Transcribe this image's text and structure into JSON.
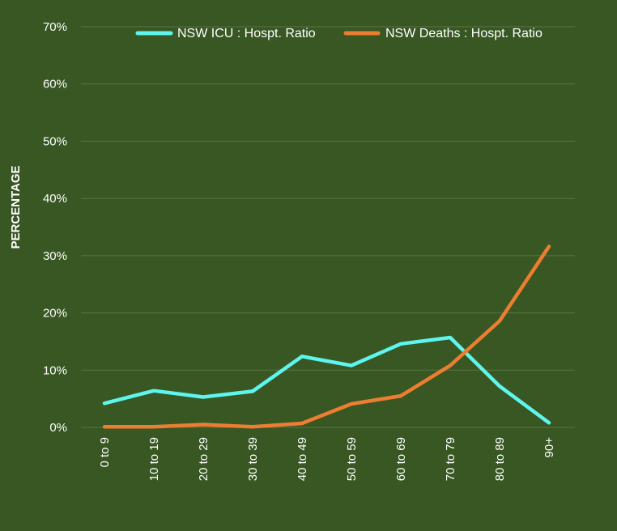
{
  "chart_data": {
    "type": "line",
    "title": "",
    "xlabel": "",
    "ylabel": "PERCENTAGE",
    "ylim": [
      0,
      70
    ],
    "yticks": [
      "0%",
      "10%",
      "20%",
      "30%",
      "40%",
      "50%",
      "60%",
      "70%"
    ],
    "ytick_values": [
      0,
      10,
      20,
      30,
      40,
      50,
      60,
      70
    ],
    "categories": [
      "0 to 9",
      "10 to 19",
      "20 to 29",
      "30 to 39",
      "40 to 49",
      "50 to 59",
      "60 to 69",
      "70 to 79",
      "80 to 89",
      "90+"
    ],
    "grid": true,
    "legend_position": "top",
    "series": [
      {
        "name": "NSW ICU : Hospt. Ratio",
        "color": "#5ef5ef",
        "values": [
          4.2,
          6.4,
          5.3,
          6.3,
          12.4,
          10.8,
          14.6,
          15.7,
          7.2,
          0.8
        ]
      },
      {
        "name": "NSW Deaths : Hospt. Ratio",
        "color": "#ed7d31",
        "values": [
          0.1,
          0.1,
          0.5,
          0.1,
          0.7,
          4.1,
          5.5,
          10.8,
          18.6,
          31.6
        ]
      }
    ]
  },
  "colors": {
    "background": "#385723",
    "gridline": "#5a7548",
    "text": "#ffffff"
  }
}
